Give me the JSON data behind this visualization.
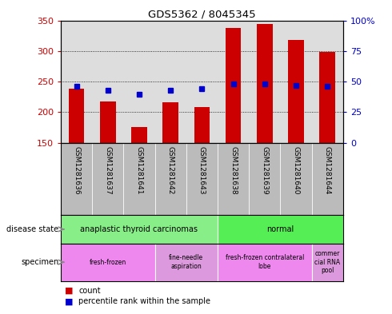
{
  "title": "GDS5362 / 8045345",
  "samples": [
    "GSM1281636",
    "GSM1281637",
    "GSM1281641",
    "GSM1281642",
    "GSM1281643",
    "GSM1281638",
    "GSM1281639",
    "GSM1281640",
    "GSM1281644"
  ],
  "counts": [
    238,
    217,
    176,
    216,
    209,
    338,
    344,
    318,
    298
  ],
  "percentile_ranks": [
    46,
    43,
    40,
    43,
    44,
    48,
    48,
    47,
    46
  ],
  "ymin": 150,
  "ymax": 350,
  "yticks": [
    150,
    200,
    250,
    300,
    350
  ],
  "y2min": 0,
  "y2max": 100,
  "y2ticks": [
    0,
    25,
    50,
    75,
    100
  ],
  "bar_color": "#cc0000",
  "dot_color": "#0000cc",
  "bar_width": 0.5,
  "disease_state_groups": [
    {
      "label": "anaplastic thyroid carcinomas",
      "start": 0,
      "end": 5,
      "color": "#88ee88"
    },
    {
      "label": "normal",
      "start": 5,
      "end": 9,
      "color": "#55ee55"
    }
  ],
  "specimen_groups": [
    {
      "label": "fresh-frozen",
      "start": 0,
      "end": 3,
      "color": "#ee88ee"
    },
    {
      "label": "fine-needle\naspiration",
      "start": 3,
      "end": 5,
      "color": "#dd99dd"
    },
    {
      "label": "fresh-frozen contralateral\nlobe",
      "start": 5,
      "end": 8,
      "color": "#ee88ee"
    },
    {
      "label": "commer\ncial RNA\npool",
      "start": 8,
      "end": 9,
      "color": "#dd99dd"
    }
  ],
  "legend_count_color": "#cc0000",
  "legend_dot_color": "#0000cc",
  "tick_label_color_left": "#cc0000",
  "tick_label_color_right": "#0000cc",
  "bg_plot": "#dddddd",
  "bg_labels": "#bbbbbb"
}
